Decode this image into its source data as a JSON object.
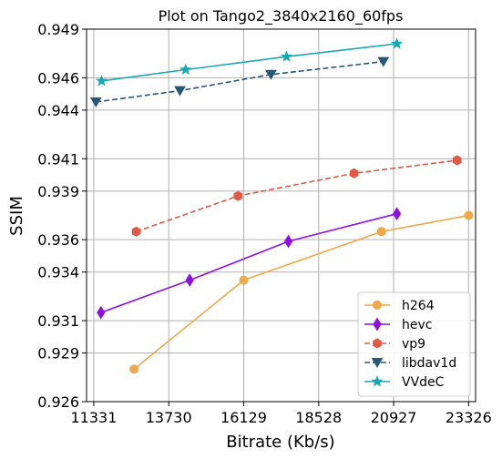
{
  "chart_data": {
    "type": "line",
    "title": "Plot on Tango2_3840x2160_60fps",
    "xlabel": "Bitrate (Kb/s)",
    "ylabel": "SSIM",
    "xlim": [
      11100,
      23550
    ],
    "ylim": [
      0.926,
      0.949
    ],
    "xticks": [
      11331,
      13730,
      16129,
      18528,
      20927,
      23326
    ],
    "xtick_labels": [
      "11331",
      "13730",
      "16129",
      "18528",
      "20927",
      "23326"
    ],
    "yticks": [
      0.926,
      0.929,
      0.931,
      0.934,
      0.936,
      0.939,
      0.941,
      0.944,
      0.946,
      0.949
    ],
    "ytick_labels": [
      "0.926",
      "0.929",
      "0.931",
      "0.934",
      "0.936",
      "0.939",
      "0.941",
      "0.944",
      "0.946",
      "0.949"
    ],
    "grid": true,
    "legend_position": "lower-right",
    "series": [
      {
        "name": "h264",
        "color": "#f0a848",
        "dash": "solid",
        "marker": "circle",
        "x": [
          12620,
          16130,
          20540,
          23330
        ],
        "y": [
          0.928,
          0.9335,
          0.9365,
          0.9375
        ]
      },
      {
        "name": "hevc",
        "color": "#9010e0",
        "dash": "solid",
        "marker": "diamond",
        "x": [
          11560,
          14400,
          17560,
          21030
        ],
        "y": [
          0.9315,
          0.9335,
          0.9359,
          0.9376
        ]
      },
      {
        "name": "vp9",
        "color": "#e05a48",
        "dash": "dashed",
        "marker": "hexagon",
        "x": [
          12690,
          15950,
          19660,
          22960
        ],
        "y": [
          0.9365,
          0.9387,
          0.9401,
          0.9409
        ]
      },
      {
        "name": "libdav1d",
        "color": "#285878",
        "dash": "dashed",
        "marker": "triangle-down",
        "x": [
          11400,
          14090,
          17000,
          20600
        ],
        "y": [
          0.9445,
          0.9452,
          0.9462,
          0.947
        ]
      },
      {
        "name": "VVdeC",
        "color": "#18a8b0",
        "dash": "solid",
        "marker": "star",
        "x": [
          11580,
          14270,
          17500,
          21030
        ],
        "y": [
          0.9458,
          0.9465,
          0.9473,
          0.9481
        ]
      }
    ]
  }
}
